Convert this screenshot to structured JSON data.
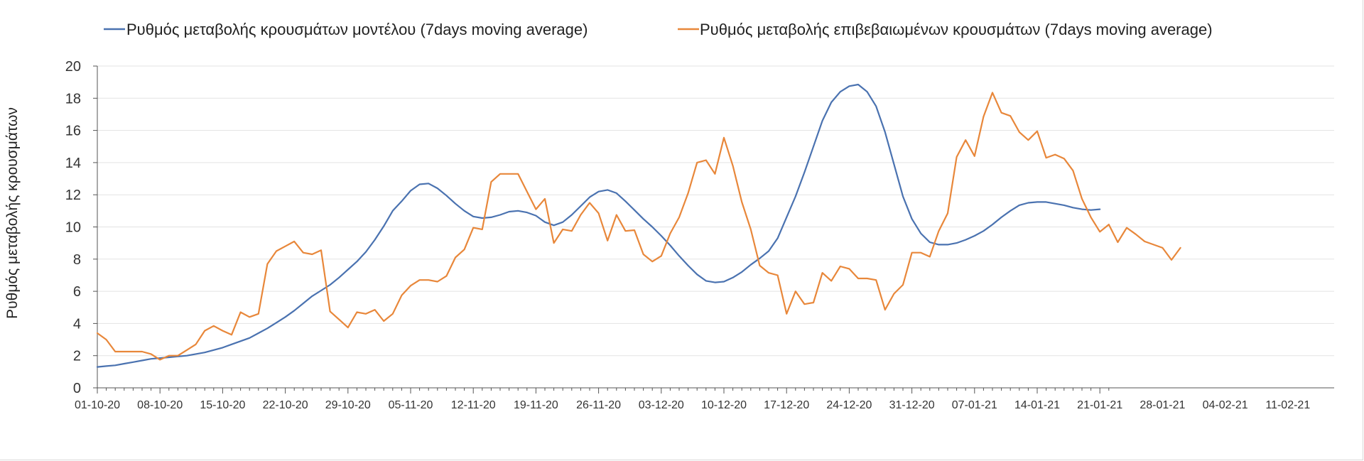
{
  "chart_data": {
    "type": "line",
    "title": "",
    "ylabel": "Ρυθμός μεταβολής κρουσμάτων",
    "xlabel": "",
    "ylim": [
      0,
      20
    ],
    "yticks": [
      0,
      2,
      4,
      6,
      8,
      10,
      12,
      14,
      16,
      18,
      20
    ],
    "grid": true,
    "legend": "top",
    "x_range": [
      "01-10-20",
      "14-02-21"
    ],
    "x_ticks": [
      "01-10-20",
      "08-10-20",
      "15-10-20",
      "22-10-20",
      "29-10-20",
      "05-11-20",
      "12-11-20",
      "19-11-20",
      "26-11-20",
      "03-12-20",
      "10-12-20",
      "17-12-20",
      "24-12-20",
      "31-12-20",
      "07-01-21",
      "14-01-21",
      "21-01-21",
      "28-01-21",
      "04-02-21",
      "11-02-21"
    ],
    "series": [
      {
        "name": "Ρυθμός μεταβολής κρουσμάτων μοντέλου (7days moving average)",
        "color": "#4a72b0",
        "values": [
          1.3,
          1.35,
          1.4,
          1.5,
          1.6,
          1.7,
          1.8,
          1.85,
          1.9,
          1.95,
          2.0,
          2.1,
          2.2,
          2.35,
          2.5,
          2.7,
          2.9,
          3.1,
          3.4,
          3.7,
          4.05,
          4.4,
          4.8,
          5.25,
          5.7,
          6.05,
          6.4,
          6.85,
          7.35,
          7.85,
          8.45,
          9.2,
          10.05,
          11.0,
          11.6,
          12.25,
          12.65,
          12.7,
          12.4,
          11.95,
          11.45,
          11.0,
          10.65,
          10.55,
          10.6,
          10.75,
          10.95,
          11.0,
          10.9,
          10.7,
          10.3,
          10.1,
          10.3,
          10.75,
          11.3,
          11.85,
          12.2,
          12.3,
          12.1,
          11.6,
          11.05,
          10.5,
          10.0,
          9.45,
          8.85,
          8.2,
          7.6,
          7.05,
          6.65,
          6.55,
          6.6,
          6.85,
          7.2,
          7.65,
          8.05,
          8.5,
          9.3,
          10.6,
          11.9,
          13.4,
          15.0,
          16.6,
          17.75,
          18.4,
          18.75,
          18.85,
          18.4,
          17.5,
          15.9,
          13.9,
          11.9,
          10.5,
          9.6,
          9.05,
          8.9,
          8.9,
          9.0,
          9.2,
          9.45,
          9.75,
          10.15,
          10.6,
          11.0,
          11.35,
          11.5,
          11.55,
          11.55,
          11.45,
          11.35,
          11.2,
          11.1,
          11.05,
          11.1
        ]
      },
      {
        "name": "Ρυθμός μεταβολής επιβεβαιωμένων κρουσμάτων (7days moving average)",
        "color": "#e8873a",
        "values": [
          3.4,
          3.0,
          2.25,
          2.25,
          2.25,
          2.25,
          2.1,
          1.75,
          2.0,
          2.0,
          2.35,
          2.7,
          3.55,
          3.85,
          3.55,
          3.3,
          4.7,
          4.4,
          4.6,
          7.7,
          8.5,
          8.8,
          9.1,
          8.4,
          8.3,
          8.55,
          4.75,
          4.25,
          3.75,
          4.7,
          4.6,
          4.85,
          4.15,
          4.6,
          5.75,
          6.35,
          6.7,
          6.7,
          6.6,
          6.95,
          8.1,
          8.6,
          9.95,
          9.85,
          12.8,
          13.3,
          13.3,
          13.3,
          12.2,
          11.1,
          11.75,
          9.0,
          9.85,
          9.75,
          10.75,
          11.5,
          10.85,
          9.15,
          10.75,
          9.75,
          9.8,
          8.3,
          7.85,
          8.2,
          9.6,
          10.6,
          12.1,
          14.0,
          14.15,
          13.3,
          15.55,
          13.8,
          11.55,
          9.85,
          7.6,
          7.15,
          7.0,
          4.6,
          6.0,
          5.2,
          5.3,
          7.15,
          6.65,
          7.55,
          7.4,
          6.8,
          6.8,
          6.7,
          4.85,
          5.85,
          6.4,
          8.4,
          8.4,
          8.15,
          9.75,
          10.85,
          14.35,
          15.4,
          14.4,
          16.85,
          18.35,
          17.1,
          16.9,
          15.9,
          15.4,
          15.95,
          14.3,
          14.5,
          14.25,
          13.5,
          11.75,
          10.6,
          9.7,
          10.15,
          9.05,
          9.95,
          9.55,
          9.1,
          8.9,
          8.7,
          7.95,
          8.7
        ]
      }
    ]
  }
}
